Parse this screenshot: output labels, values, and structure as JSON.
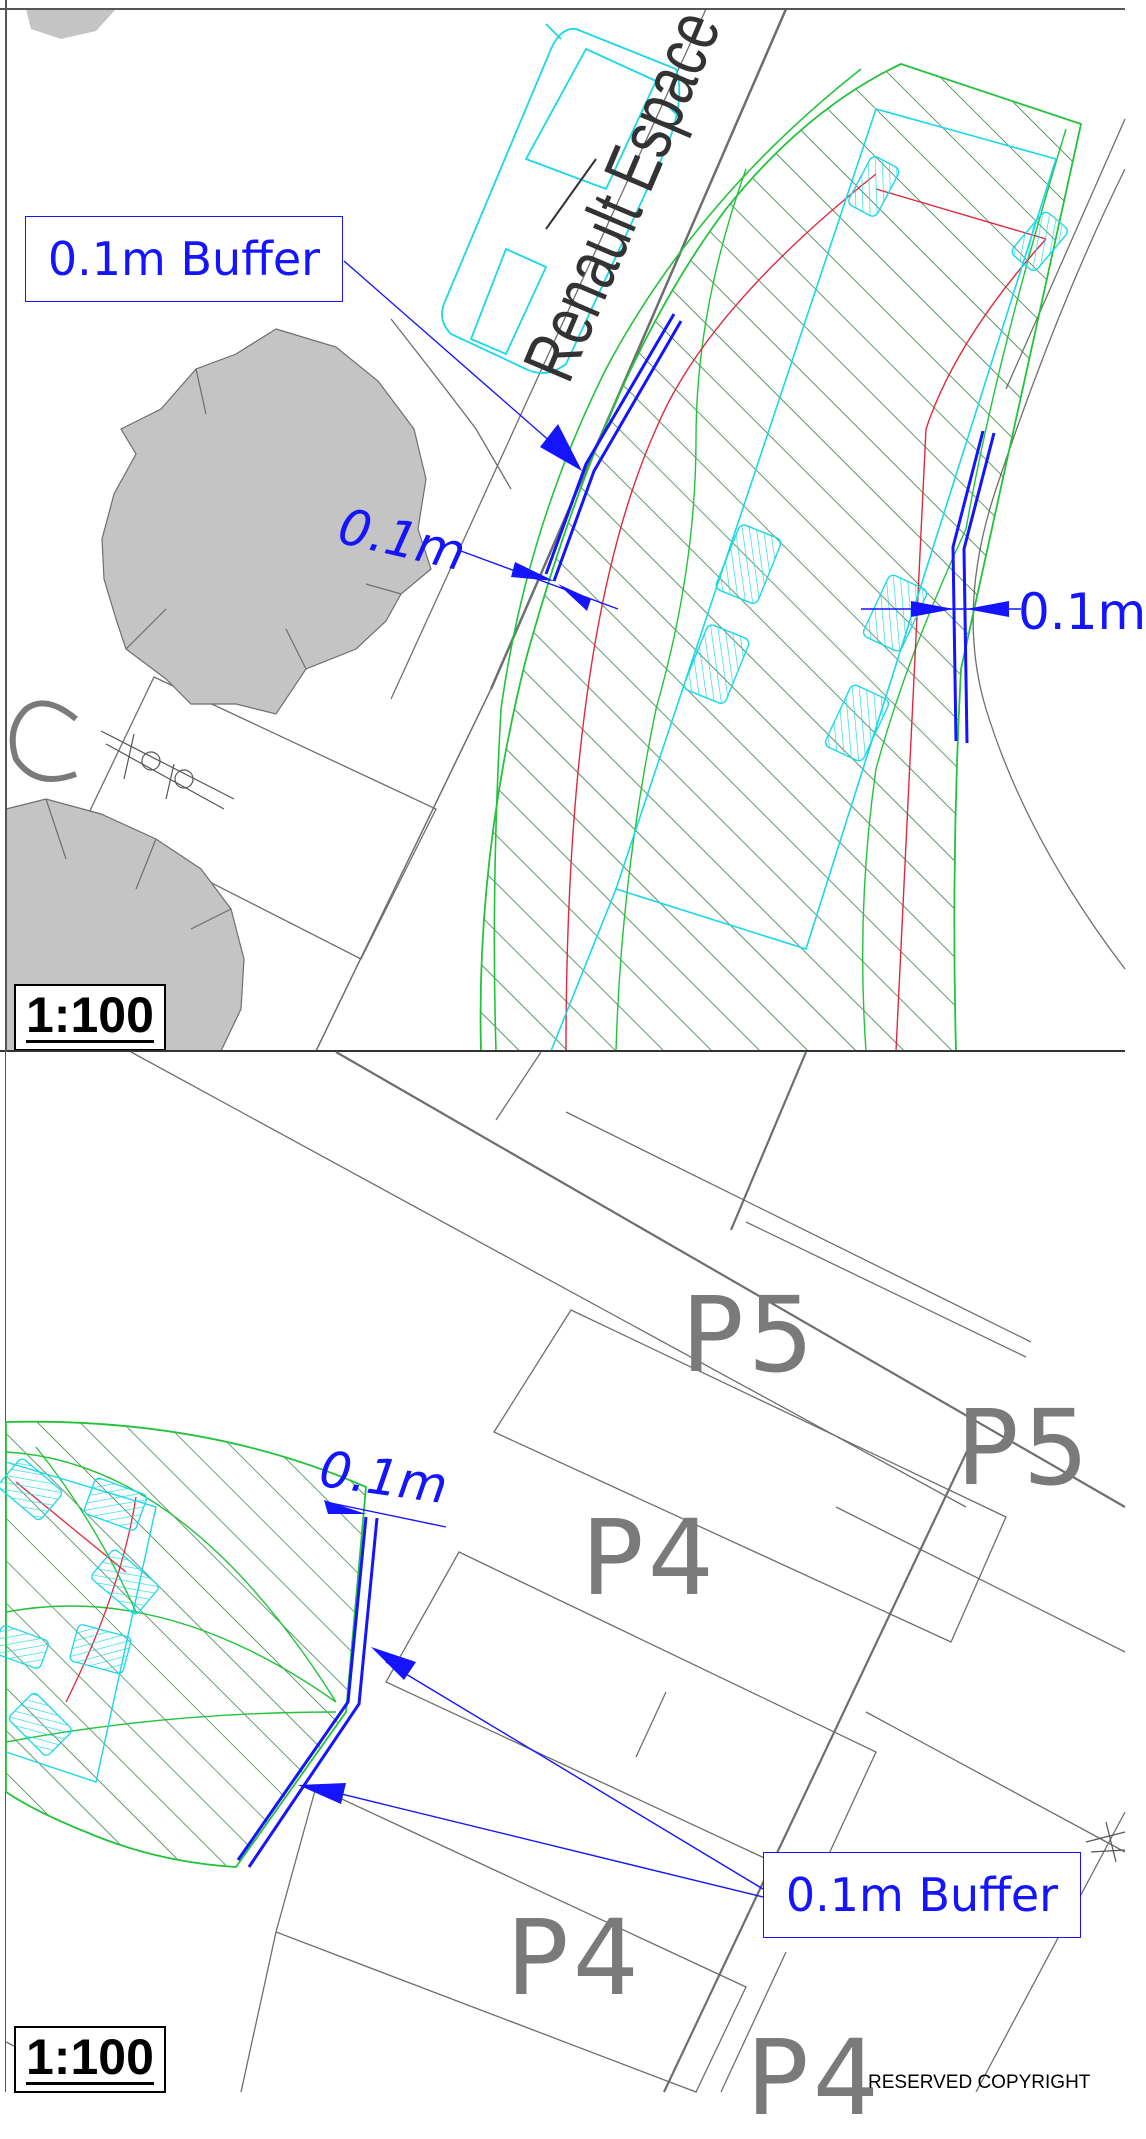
{
  "colors": {
    "annotation_blue": "#1414ff",
    "tracking_green": "#22c33a",
    "vehicle_cyan": "#19d8e8",
    "wheel_red": "#e0283c",
    "tree_gray": "#c4c4c4",
    "linework_gray": "#6e6e6e"
  },
  "top_panel": {
    "scale": "1:100",
    "buffer_callout": "0.1m Buffer",
    "dim_left": "0.1m",
    "dim_right": "0.1m",
    "vehicle_label": "Renault Espace",
    "partial_letter": "C"
  },
  "bottom_panel": {
    "scale": "1:100",
    "buffer_callout": "0.1m Buffer",
    "dim_top": "0.1m",
    "bay_labels": [
      "P5",
      "P5",
      "P4",
      "P4",
      "P4"
    ],
    "copyright": "RESERVED COPYRIGHT"
  }
}
